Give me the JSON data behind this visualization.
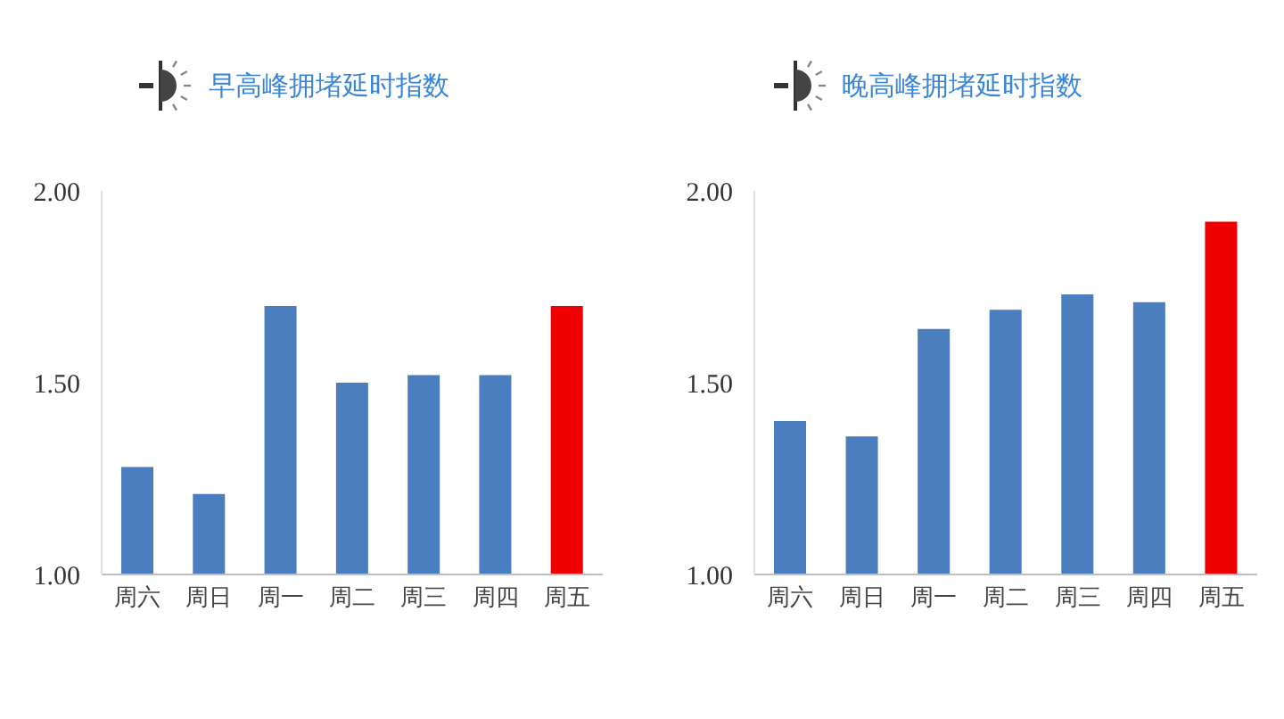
{
  "chart_data": [
    {
      "type": "bar",
      "title": "早高峰拥堵延时指数",
      "categories": [
        "周六",
        "周日",
        "周一",
        "周二",
        "周三",
        "周四",
        "周五"
      ],
      "values": [
        1.28,
        1.21,
        1.7,
        1.5,
        1.52,
        1.52,
        1.7
      ],
      "colors": [
        "#4a7ebf",
        "#4a7ebf",
        "#4a7ebf",
        "#4a7ebf",
        "#4a7ebf",
        "#4a7ebf",
        "#ee0000"
      ],
      "ylim": [
        1,
        2
      ],
      "yticks": [
        {
          "value": 1,
          "label": "1.00"
        },
        {
          "value": 1.5,
          "label": "1.50"
        },
        {
          "value": 2,
          "label": "2.00"
        }
      ]
    },
    {
      "type": "bar",
      "title": "晚高峰拥堵延时指数",
      "categories": [
        "周六",
        "周日",
        "周一",
        "周二",
        "周三",
        "周四",
        "周五"
      ],
      "values": [
        1.4,
        1.36,
        1.64,
        1.69,
        1.73,
        1.71,
        1.92
      ],
      "colors": [
        "#4a7ebf",
        "#4a7ebf",
        "#4a7ebf",
        "#4a7ebf",
        "#4a7ebf",
        "#4a7ebf",
        "#ee0000"
      ],
      "ylim": [
        1,
        2
      ],
      "yticks": [
        {
          "value": 1,
          "label": "1.00"
        },
        {
          "value": 1.5,
          "label": "1.50"
        },
        {
          "value": 2,
          "label": "2.00"
        }
      ]
    }
  ]
}
